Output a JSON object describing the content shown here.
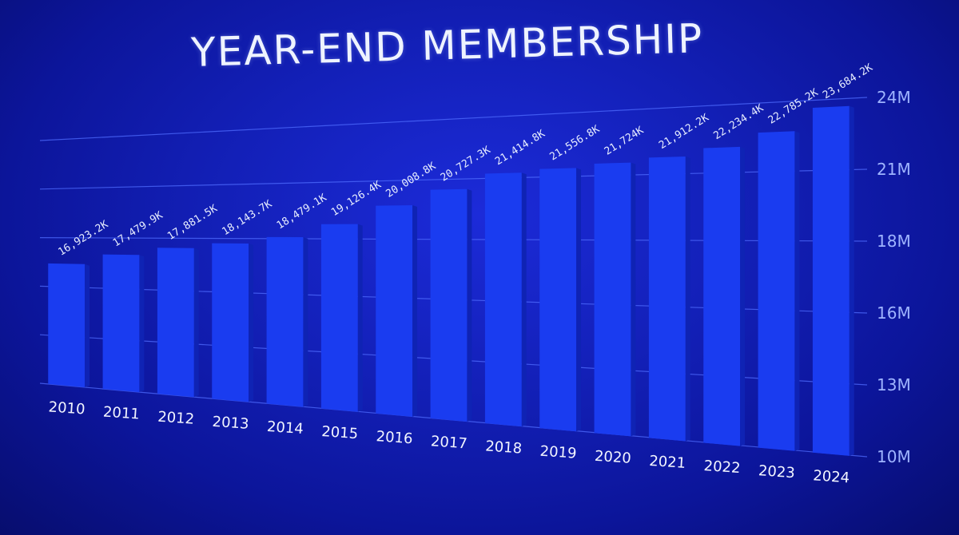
{
  "title": "YEAR-END MEMBERSHIP",
  "colors": {
    "background": "#1320b8",
    "bar_front": "#1a3cf0",
    "bar_side": "#0f23b4",
    "grid": "#4f6cff",
    "text": "#eef3ff",
    "axis_text": "#9fb4ff"
  },
  "chart_data": {
    "type": "bar",
    "title": "YEAR-END MEMBERSHIP",
    "categories": [
      "2010",
      "2011",
      "2012",
      "2013",
      "2014",
      "2015",
      "2016",
      "2017",
      "2018",
      "2019",
      "2020",
      "2021",
      "2022",
      "2023",
      "2024"
    ],
    "values": [
      16923.2,
      17479.9,
      17881.5,
      18143.7,
      18479.1,
      19126.4,
      20008.8,
      20727.3,
      21414.8,
      21556.8,
      21724,
      21912.2,
      22234.4,
      22785.2,
      23684.2
    ],
    "value_labels": [
      "16,923.2K",
      "17,479.9K",
      "17,881.5K",
      "18,143.7K",
      "18,479.1K",
      "19,126.4K",
      "20,008.8K",
      "20,727.3K",
      "21,414.8K",
      "21,556.8K",
      "21,724K",
      "21,912.2K",
      "22,234.4K",
      "22,785.2K",
      "23,684.2K"
    ],
    "value_unit": "thousands",
    "y_ticks": [
      "10M",
      "13M",
      "16M",
      "18M",
      "21M",
      "24M"
    ],
    "y_tick_values": [
      10000,
      12800,
      15600,
      18400,
      21200,
      24000
    ],
    "ylim": [
      10000,
      24000
    ],
    "y_axis_position": "right",
    "grid": true,
    "legend": "none",
    "xlabel": "",
    "ylabel": ""
  }
}
